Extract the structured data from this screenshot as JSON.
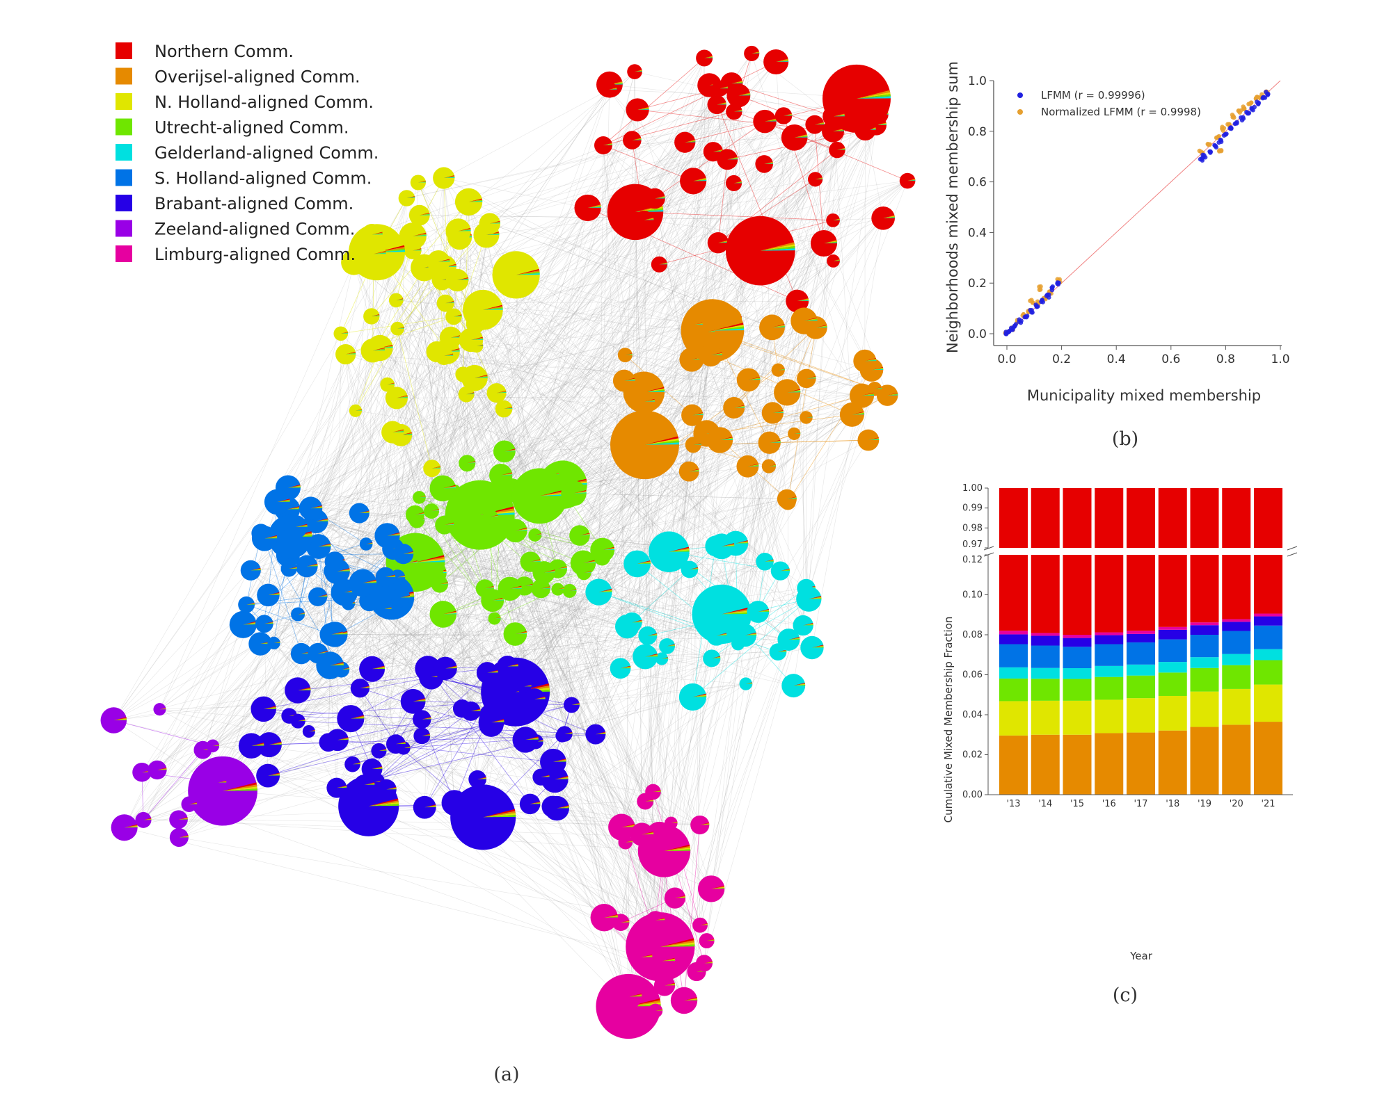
{
  "communities": [
    {
      "name": "Northern Comm.",
      "color": "#e60000"
    },
    {
      "name": "Overijsel-aligned Comm.",
      "color": "#e68a00"
    },
    {
      "name": "N. Holland-aligned Comm.",
      "color": "#e0e600"
    },
    {
      "name": "Utrecht-aligned Comm.",
      "color": "#6fe600"
    },
    {
      "name": "Gelderland-aligned Comm.",
      "color": "#00e0e0"
    },
    {
      "name": "S. Holland-aligned Comm.",
      "color": "#0073e6"
    },
    {
      "name": "Brabant-aligned Comm.",
      "color": "#2600e6"
    },
    {
      "name": "Zeeland-aligned Comm.",
      "color": "#9900e6"
    },
    {
      "name": "Limburg-aligned Comm.",
      "color": "#e600a0"
    }
  ],
  "captions": {
    "a": "(a)",
    "b": "(b)",
    "c": "(c)"
  },
  "chart_data": [
    {
      "panel": "a",
      "type": "network",
      "title": "",
      "legend": "top-left",
      "node_style": "pie charts of mixed membership, colored by dominant community"
    },
    {
      "panel": "b",
      "type": "scatter",
      "xlabel": "Municipality mixed membership",
      "ylabel": "Neighborhoods mixed membership sum",
      "xlim": [
        0.0,
        1.0
      ],
      "ylim": [
        0.0,
        1.0
      ],
      "xticks": [
        "0.0",
        "0.2",
        "0.4",
        "0.6",
        "0.8",
        "1.0"
      ],
      "yticks": [
        "0.0",
        "0.2",
        "0.4",
        "0.6",
        "0.8",
        "1.0"
      ],
      "legend_position": "top-left",
      "reference_line": {
        "from": [
          0,
          0
        ],
        "to": [
          1,
          1
        ],
        "color": "#f08080"
      },
      "series": [
        {
          "name": "LFMM (r = 0.99996)",
          "color": "#2020e0",
          "points": [
            [
              0.0,
              0.0
            ],
            [
              0.01,
              0.01
            ],
            [
              0.02,
              0.02
            ],
            [
              0.03,
              0.03
            ],
            [
              0.05,
              0.05
            ],
            [
              0.07,
              0.07
            ],
            [
              0.09,
              0.09
            ],
            [
              0.11,
              0.11
            ],
            [
              0.13,
              0.13
            ],
            [
              0.15,
              0.15
            ],
            [
              0.17,
              0.18
            ],
            [
              0.19,
              0.2
            ],
            [
              0.71,
              0.69
            ],
            [
              0.72,
              0.7
            ],
            [
              0.74,
              0.72
            ],
            [
              0.76,
              0.74
            ],
            [
              0.78,
              0.76
            ],
            [
              0.8,
              0.79
            ],
            [
              0.82,
              0.81
            ],
            [
              0.84,
              0.83
            ],
            [
              0.86,
              0.85
            ],
            [
              0.88,
              0.87
            ],
            [
              0.9,
              0.89
            ],
            [
              0.92,
              0.91
            ],
            [
              0.94,
              0.93
            ],
            [
              0.95,
              0.95
            ]
          ]
        },
        {
          "name": "Normalized LFMM (r = 0.9998)",
          "color": "#e6a030",
          "points": [
            [
              0.0,
              0.0
            ],
            [
              0.02,
              0.02
            ],
            [
              0.04,
              0.05
            ],
            [
              0.06,
              0.07
            ],
            [
              0.08,
              0.09
            ],
            [
              0.09,
              0.13
            ],
            [
              0.11,
              0.12
            ],
            [
              0.12,
              0.18
            ],
            [
              0.14,
              0.14
            ],
            [
              0.16,
              0.16
            ],
            [
              0.19,
              0.21
            ],
            [
              0.71,
              0.72
            ],
            [
              0.74,
              0.75
            ],
            [
              0.77,
              0.78
            ],
            [
              0.78,
              0.72
            ],
            [
              0.79,
              0.81
            ],
            [
              0.81,
              0.83
            ],
            [
              0.83,
              0.86
            ],
            [
              0.85,
              0.88
            ],
            [
              0.87,
              0.89
            ],
            [
              0.89,
              0.91
            ],
            [
              0.91,
              0.93
            ],
            [
              0.93,
              0.94
            ],
            [
              0.95,
              0.95
            ]
          ]
        }
      ]
    },
    {
      "panel": "c",
      "type": "bar",
      "stacked": true,
      "broken_axis": true,
      "xlabel": "Year",
      "ylabel": "Cumulative Mixed Membership Fraction",
      "categories": [
        "'13",
        "'14",
        "'15",
        "'16",
        "'17",
        "'18",
        "'19",
        "'20",
        "'21"
      ],
      "ylim_lower": [
        0.0,
        0.12
      ],
      "ylim_upper": [
        0.97,
        1.0
      ],
      "yticks_lower": [
        "0.00",
        "0.02",
        "0.04",
        "0.06",
        "0.08",
        "0.10",
        "0.12"
      ],
      "yticks_upper": [
        "0.97",
        "0.98",
        "0.99",
        "1.00"
      ],
      "stack_order": [
        "Overijsel-aligned Comm.",
        "N. Holland-aligned Comm.",
        "Utrecht-aligned Comm.",
        "Gelderland-aligned Comm.",
        "S. Holland-aligned Comm.",
        "Brabant-aligned Comm.",
        "Limburg-aligned Comm.",
        "Northern Comm."
      ],
      "cumulative_tops": [
        [
          0.0296,
          0.0468,
          0.0581,
          0.0637,
          0.0753,
          0.0802,
          0.082,
          1.0
        ],
        [
          0.03,
          0.047,
          0.058,
          0.0634,
          0.0746,
          0.0795,
          0.0809,
          1.0
        ],
        [
          0.03,
          0.047,
          0.0579,
          0.0633,
          0.074,
          0.0784,
          0.08,
          1.0
        ],
        [
          0.0308,
          0.0475,
          0.0589,
          0.0644,
          0.0753,
          0.0798,
          0.0812,
          1.0
        ],
        [
          0.0311,
          0.0483,
          0.0596,
          0.0651,
          0.0762,
          0.0804,
          0.082,
          1.0
        ],
        [
          0.0321,
          0.0494,
          0.0611,
          0.0664,
          0.0777,
          0.0825,
          0.0839,
          1.0
        ],
        [
          0.0339,
          0.0516,
          0.0634,
          0.0688,
          0.08,
          0.0848,
          0.0862,
          1.0
        ],
        [
          0.035,
          0.0529,
          0.0648,
          0.0704,
          0.0819,
          0.0865,
          0.0878,
          1.0
        ],
        [
          0.0365,
          0.0551,
          0.0673,
          0.0728,
          0.0846,
          0.0892,
          0.0906,
          1.0
        ]
      ]
    }
  ]
}
